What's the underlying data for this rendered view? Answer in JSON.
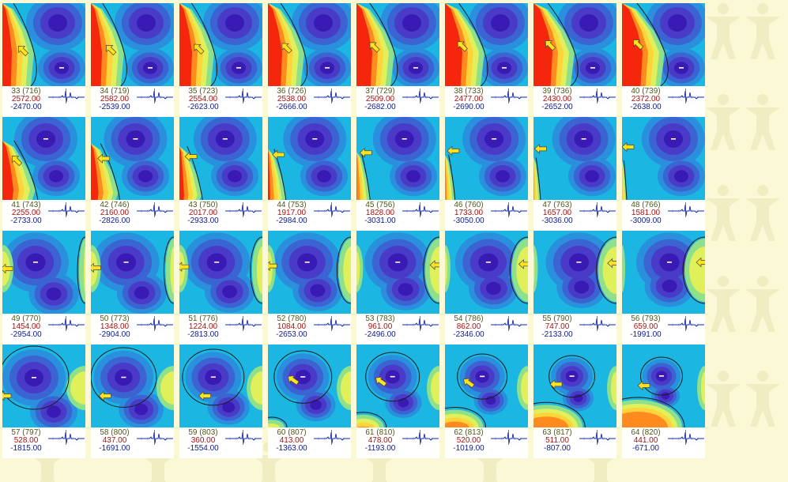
{
  "colors": {
    "page_background": "#fbf8d6",
    "frame_index_text": "#4a5a16",
    "max_value_text": "#a81212",
    "min_value_text": "#0d1c8a",
    "arrow_fill": "#ffe21c",
    "contour_line": "#1a1a1a",
    "colormap": [
      "#3a1ab4",
      "#4a3ac8",
      "#3b63d2",
      "#2a8fdc",
      "#1bb6e2",
      "#23cfd2",
      "#8fe08a",
      "#dff05a",
      "#ffd43a",
      "#ff8a1e",
      "#f4260c"
    ]
  },
  "icons": {
    "wavefront_marker": "arrow-icon",
    "signal_preview": "ecg-trace-icon",
    "background": "human-figure-watermark-icon"
  },
  "frames": [
    {
      "frame": "33 (716)",
      "max": "2572.00",
      "min": "-2470.00"
    },
    {
      "frame": "34 (719)",
      "max": "2582.00",
      "min": "-2539.00"
    },
    {
      "frame": "35 (723)",
      "max": "2554.00",
      "min": "-2623.00"
    },
    {
      "frame": "36 (726)",
      "max": "2538.00",
      "min": "-2666.00"
    },
    {
      "frame": "37 (729)",
      "max": "2509.00",
      "min": "-2682.00"
    },
    {
      "frame": "38 (733)",
      "max": "2477.00",
      "min": "-2690.00"
    },
    {
      "frame": "39 (736)",
      "max": "2430.00",
      "min": "-2652.00"
    },
    {
      "frame": "40 (739)",
      "max": "2372.00",
      "min": "-2638.00"
    },
    {
      "frame": "41 (743)",
      "max": "2255.00",
      "min": "-2733.00"
    },
    {
      "frame": "42 (746)",
      "max": "2160.00",
      "min": "-2826.00"
    },
    {
      "frame": "43 (750)",
      "max": "2017.00",
      "min": "-2933.00"
    },
    {
      "frame": "44 (753)",
      "max": "1917.00",
      "min": "-2984.00"
    },
    {
      "frame": "45 (756)",
      "max": "1828.00",
      "min": "-3031.00"
    },
    {
      "frame": "46 (760)",
      "max": "1733.00",
      "min": "-3050.00"
    },
    {
      "frame": "47 (763)",
      "max": "1657.00",
      "min": "-3036.00"
    },
    {
      "frame": "48 (766)",
      "max": "1581.00",
      "min": "-3009.00"
    },
    {
      "frame": "49 (770)",
      "max": "1454.00",
      "min": "-2954.00"
    },
    {
      "frame": "50 (773)",
      "max": "1348.00",
      "min": "-2904.00"
    },
    {
      "frame": "51 (776)",
      "max": "1224.00",
      "min": "-2813.00"
    },
    {
      "frame": "52 (780)",
      "max": "1084.00",
      "min": "-2653.00"
    },
    {
      "frame": "53 (783)",
      "max": "961.00",
      "min": "-2496.00"
    },
    {
      "frame": "54 (786)",
      "max": "862.00",
      "min": "-2346.00"
    },
    {
      "frame": "55 (790)",
      "max": "747.00",
      "min": "-2133.00"
    },
    {
      "frame": "56 (793)",
      "max": "659.00",
      "min": "-1991.00"
    },
    {
      "frame": "57 (797)",
      "max": "528.00",
      "min": "-1815.00"
    },
    {
      "frame": "58 (800)",
      "max": "437.00",
      "min": "-1691.00"
    },
    {
      "frame": "59 (803)",
      "max": "360.00",
      "min": "-1554.00"
    },
    {
      "frame": "60 (807)",
      "max": "413.00",
      "min": "-1363.00"
    },
    {
      "frame": "61 (810)",
      "max": "478.00",
      "min": "-1193.00"
    },
    {
      "frame": "62 (813)",
      "max": "520.00",
      "min": "-1019.00"
    },
    {
      "frame": "63 (817)",
      "max": "511.00",
      "min": "-807.00"
    },
    {
      "frame": "64 (820)",
      "max": "441.00",
      "min": "-671.00"
    }
  ]
}
